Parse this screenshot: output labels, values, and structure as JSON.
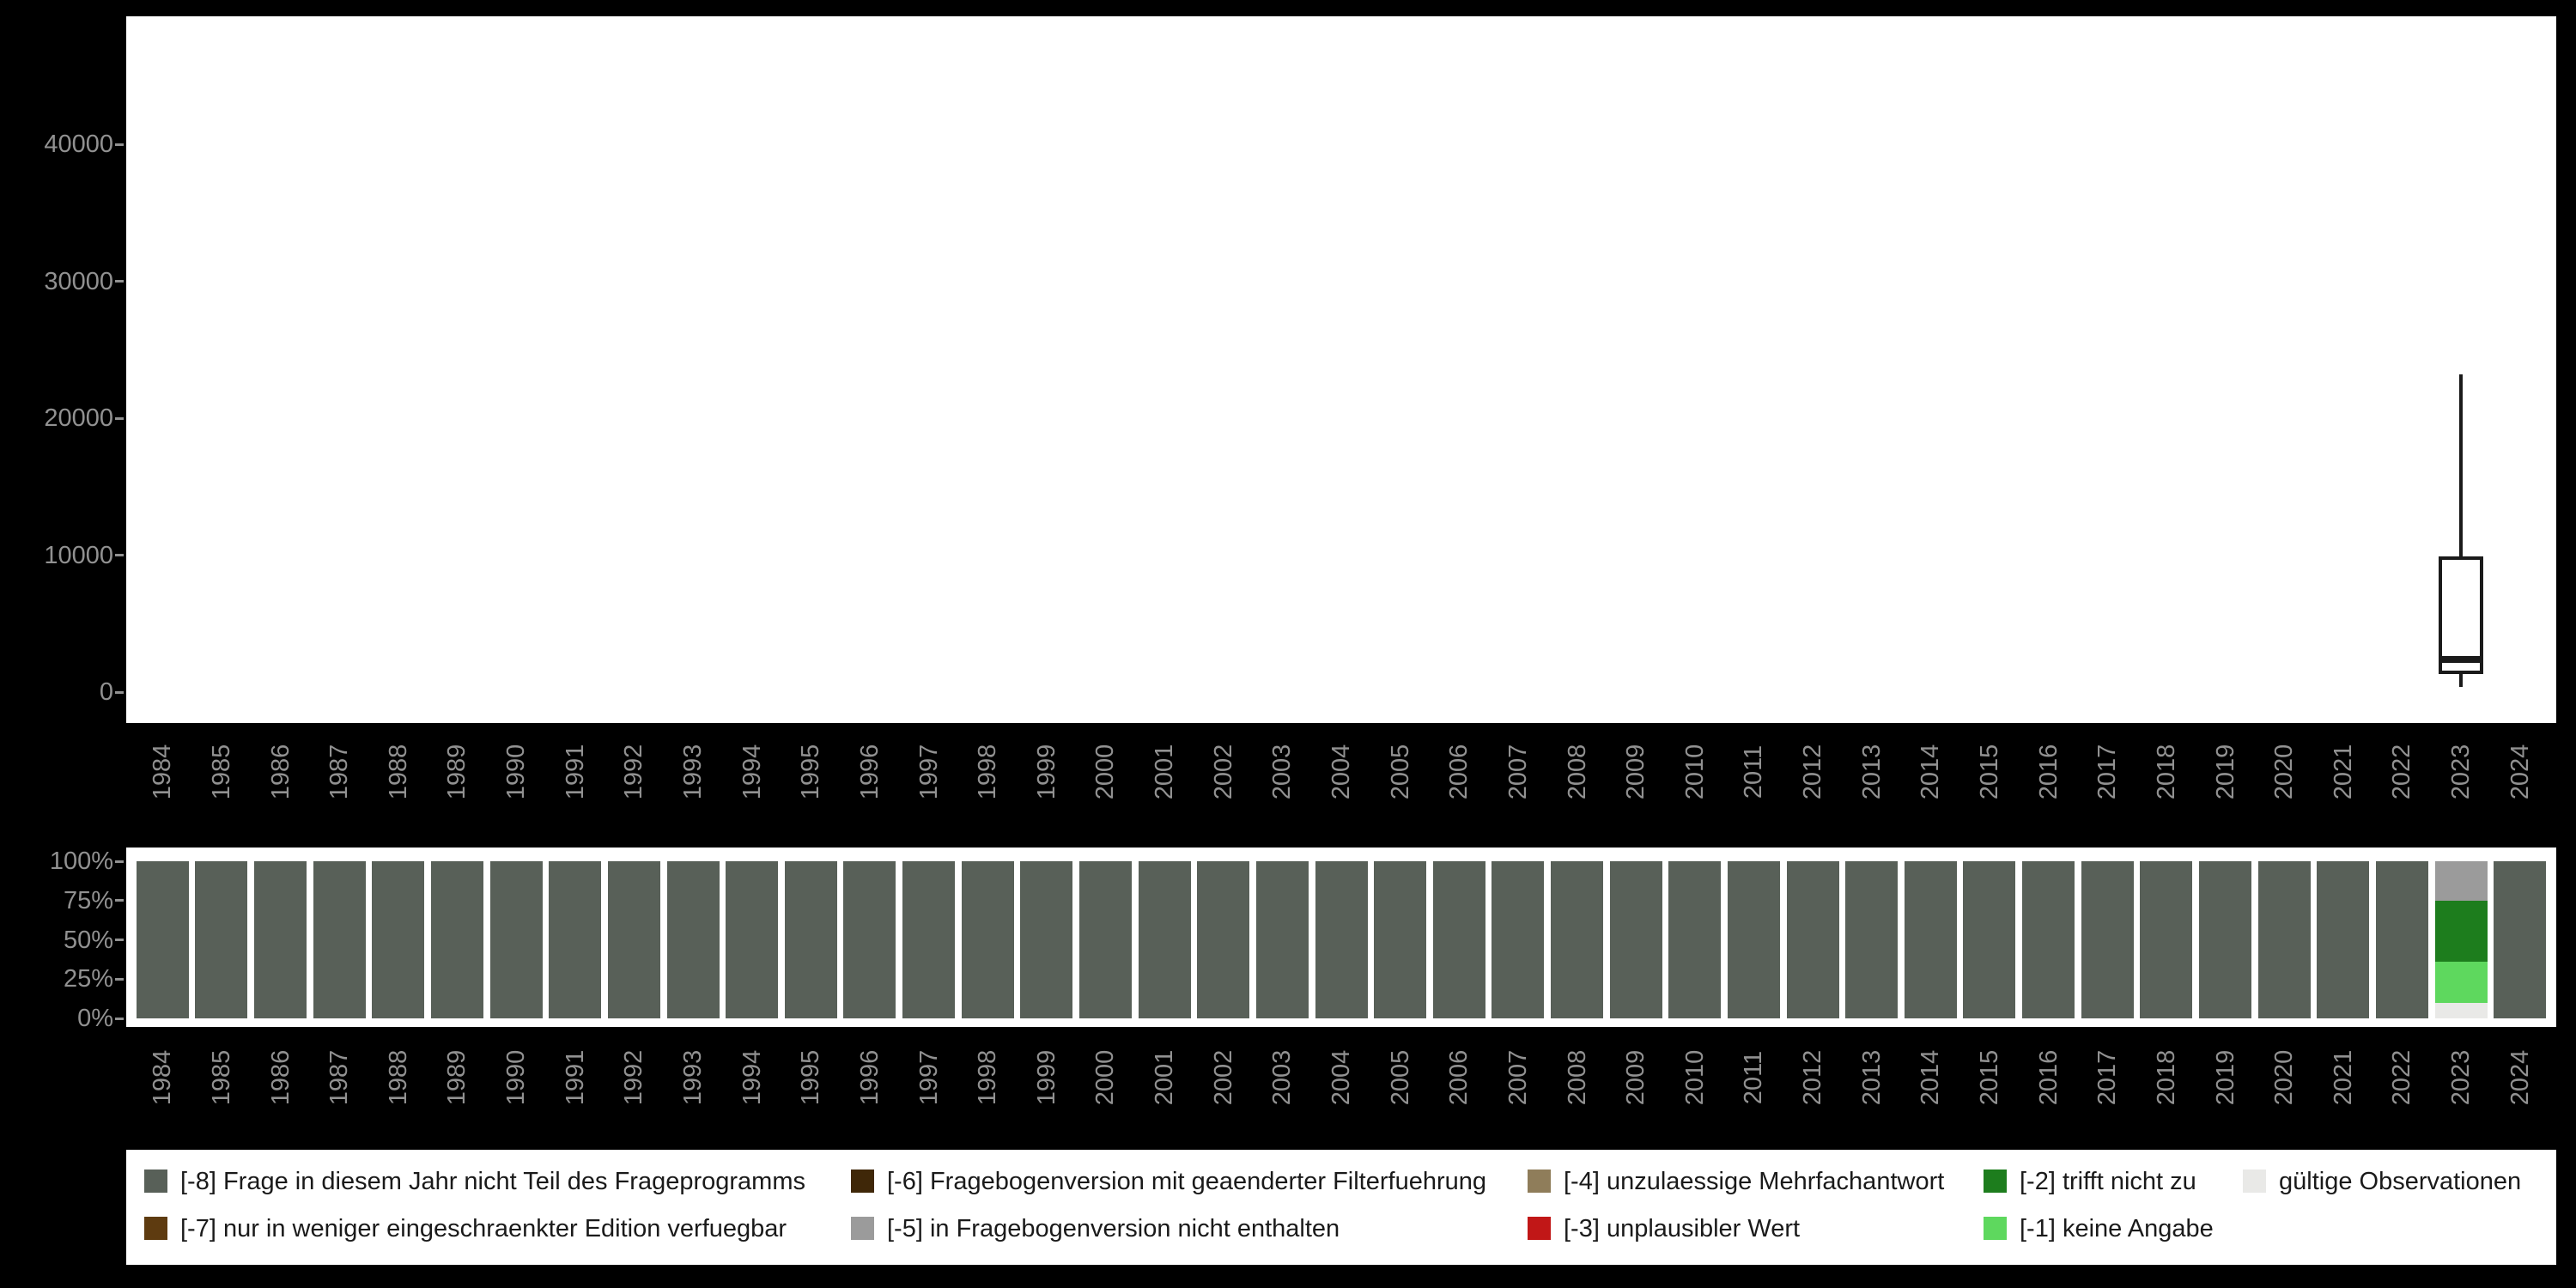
{
  "background_color": "#000000",
  "panel_color": "#ffffff",
  "axis_text_color": "#919191",
  "box_stroke_color": "#1a1a1a",
  "years": [
    "1984",
    "1985",
    "1986",
    "1987",
    "1988",
    "1989",
    "1990",
    "1991",
    "1992",
    "1993",
    "1994",
    "1995",
    "1996",
    "1997",
    "1998",
    "1999",
    "2000",
    "2001",
    "2002",
    "2003",
    "2004",
    "2005",
    "2006",
    "2007",
    "2008",
    "2009",
    "2010",
    "2011",
    "2012",
    "2013",
    "2014",
    "2015",
    "2016",
    "2017",
    "2018",
    "2019",
    "2020",
    "2021",
    "2022",
    "2023",
    "2024"
  ],
  "chart_data": [
    {
      "type": "boxplot",
      "title": "",
      "xlabel": "",
      "ylabel": "",
      "categories": [
        "1984",
        "1985",
        "1986",
        "1987",
        "1988",
        "1989",
        "1990",
        "1991",
        "1992",
        "1993",
        "1994",
        "1995",
        "1996",
        "1997",
        "1998",
        "1999",
        "2000",
        "2001",
        "2002",
        "2003",
        "2004",
        "2005",
        "2006",
        "2007",
        "2008",
        "2009",
        "2010",
        "2011",
        "2012",
        "2013",
        "2014",
        "2015",
        "2016",
        "2017",
        "2018",
        "2019",
        "2020",
        "2021",
        "2022",
        "2023",
        "2024"
      ],
      "ylim": [
        0,
        49300
      ],
      "yticks": [
        0,
        10000,
        20000,
        30000,
        40000
      ],
      "grid": false,
      "boxes": [
        {
          "category": "2023",
          "min": 400,
          "q1": 1300,
          "median": 2400,
          "q3": 9900,
          "max": 23200
        }
      ]
    },
    {
      "type": "bar",
      "variant": "percent-stacked",
      "title": "",
      "xlabel": "",
      "ylabel": "",
      "categories": [
        "1984",
        "1985",
        "1986",
        "1987",
        "1988",
        "1989",
        "1990",
        "1991",
        "1992",
        "1993",
        "1994",
        "1995",
        "1996",
        "1997",
        "1998",
        "1999",
        "2000",
        "2001",
        "2002",
        "2003",
        "2004",
        "2005",
        "2006",
        "2007",
        "2008",
        "2009",
        "2010",
        "2011",
        "2012",
        "2013",
        "2014",
        "2015",
        "2016",
        "2017",
        "2018",
        "2019",
        "2020",
        "2021",
        "2022",
        "2023",
        "2024"
      ],
      "ylim": [
        0,
        100
      ],
      "yticks": [
        0,
        25,
        50,
        75,
        100
      ],
      "ytick_labels": [
        "0%",
        "25%",
        "50%",
        "75%",
        "100%"
      ],
      "stack_order_bottom_to_top": [
        "valid",
        "-1",
        "-2",
        "-3",
        "-4",
        "-5",
        "-6",
        "-7",
        "-8"
      ],
      "default_segments": {
        "-8": 100
      },
      "segments_by_year": {
        "2023": {
          "valid": 10,
          "-1": 26,
          "-2": 39,
          "-5": 25
        }
      }
    }
  ],
  "colors": {
    "-8": "#586058",
    "-7": "#5e3b10",
    "-6": "#3f2708",
    "-5": "#9b9b9b",
    "-4": "#8f7d5a",
    "-3": "#c11717",
    "-2": "#1d7d1d",
    "-1": "#5ed85e",
    "valid": "#e9e9e7"
  },
  "legend": {
    "columns": [
      [
        {
          "key": "-8",
          "label": "[-8] Frage in diesem Jahr nicht Teil des Frageprogramms"
        },
        {
          "key": "-7",
          "label": "[-7] nur in weniger eingeschraenkter Edition verfuegbar"
        }
      ],
      [
        {
          "key": "-6",
          "label": "[-6] Fragebogenversion mit geaenderter Filterfuehrung"
        },
        {
          "key": "-5",
          "label": "[-5] in Fragebogenversion nicht enthalten"
        }
      ],
      [
        {
          "key": "-4",
          "label": "[-4] unzulaessige Mehrfachantwort"
        },
        {
          "key": "-3",
          "label": "[-3] unplausibler Wert"
        }
      ],
      [
        {
          "key": "-2",
          "label": "[-2] trifft nicht zu"
        },
        {
          "key": "-1",
          "label": "[-1] keine Angabe"
        }
      ],
      [
        {
          "key": "valid",
          "label": "gültige Observationen"
        }
      ]
    ]
  }
}
